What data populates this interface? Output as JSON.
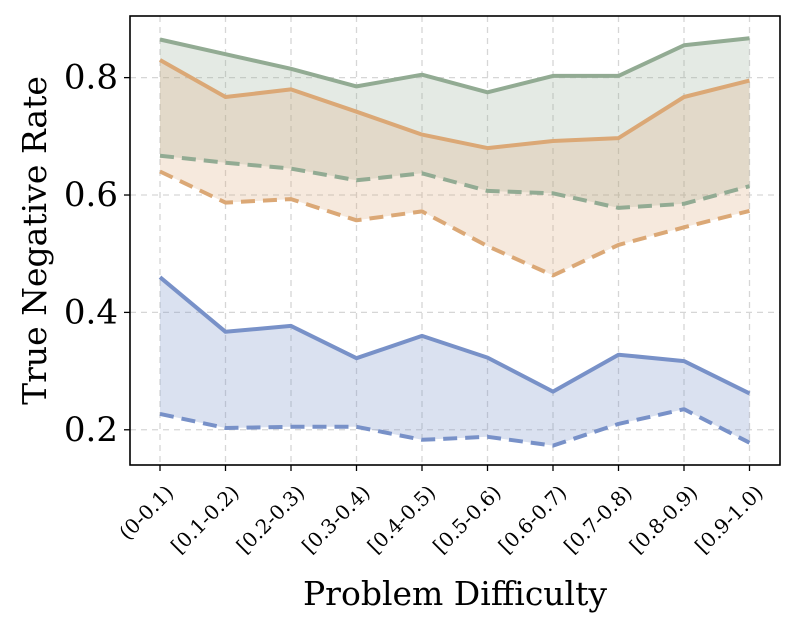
{
  "chart_data": {
    "type": "line",
    "title": "",
    "xlabel": "Problem Difficulty",
    "ylabel": "True Negative Rate",
    "categories": [
      "(0-0.1)",
      "[0.1-0.2)",
      "[0.2-0.3)",
      "[0.3-0.4)",
      "[0.4-0.5)",
      "[0.5-0.6)",
      "[0.6-0.7)",
      "[0.7-0.8)",
      "[0.8-0.9)",
      "[0.9-1.0)"
    ],
    "ylim": [
      0.14,
      0.905
    ],
    "yticks": [
      0.2,
      0.4,
      0.6,
      0.8
    ],
    "ytick_labels": [
      "0.2",
      "0.4",
      "0.6",
      "0.8"
    ],
    "grid": true,
    "legend": "none",
    "series": [
      {
        "name": "green-solid",
        "color": "#92ab93",
        "style": "solid",
        "values": [
          0.865,
          0.84,
          0.815,
          0.785,
          0.805,
          0.775,
          0.803,
          0.803,
          0.855,
          0.867
        ]
      },
      {
        "name": "green-dashed",
        "color": "#92ab93",
        "style": "dashed",
        "values": [
          0.667,
          0.655,
          0.645,
          0.625,
          0.637,
          0.607,
          0.603,
          0.578,
          0.585,
          0.615
        ]
      },
      {
        "name": "orange-solid",
        "color": "#dba876",
        "style": "solid",
        "values": [
          0.83,
          0.767,
          0.78,
          0.742,
          0.703,
          0.68,
          0.692,
          0.697,
          0.767,
          0.795
        ]
      },
      {
        "name": "orange-dashed",
        "color": "#dba876",
        "style": "dashed",
        "values": [
          0.64,
          0.587,
          0.593,
          0.557,
          0.572,
          0.513,
          0.463,
          0.515,
          0.545,
          0.573
        ]
      },
      {
        "name": "blue-solid",
        "color": "#7891c8",
        "style": "solid",
        "values": [
          0.46,
          0.367,
          0.377,
          0.322,
          0.36,
          0.323,
          0.265,
          0.328,
          0.317,
          0.262
        ]
      },
      {
        "name": "blue-dashed",
        "color": "#7891c8",
        "style": "dashed",
        "values": [
          0.227,
          0.203,
          0.205,
          0.205,
          0.183,
          0.188,
          0.173,
          0.21,
          0.235,
          0.178
        ]
      }
    ],
    "bands": [
      {
        "name": "green-band",
        "upper": "green-solid",
        "lower": "green-dashed",
        "color": "#92ab93",
        "opacity": 0.25
      },
      {
        "name": "orange-band",
        "upper": "orange-solid",
        "lower": "orange-dashed",
        "color": "#dba876",
        "opacity": 0.25
      },
      {
        "name": "blue-band",
        "upper": "blue-solid",
        "lower": "blue-dashed",
        "color": "#7891c8",
        "opacity": 0.27
      }
    ]
  }
}
